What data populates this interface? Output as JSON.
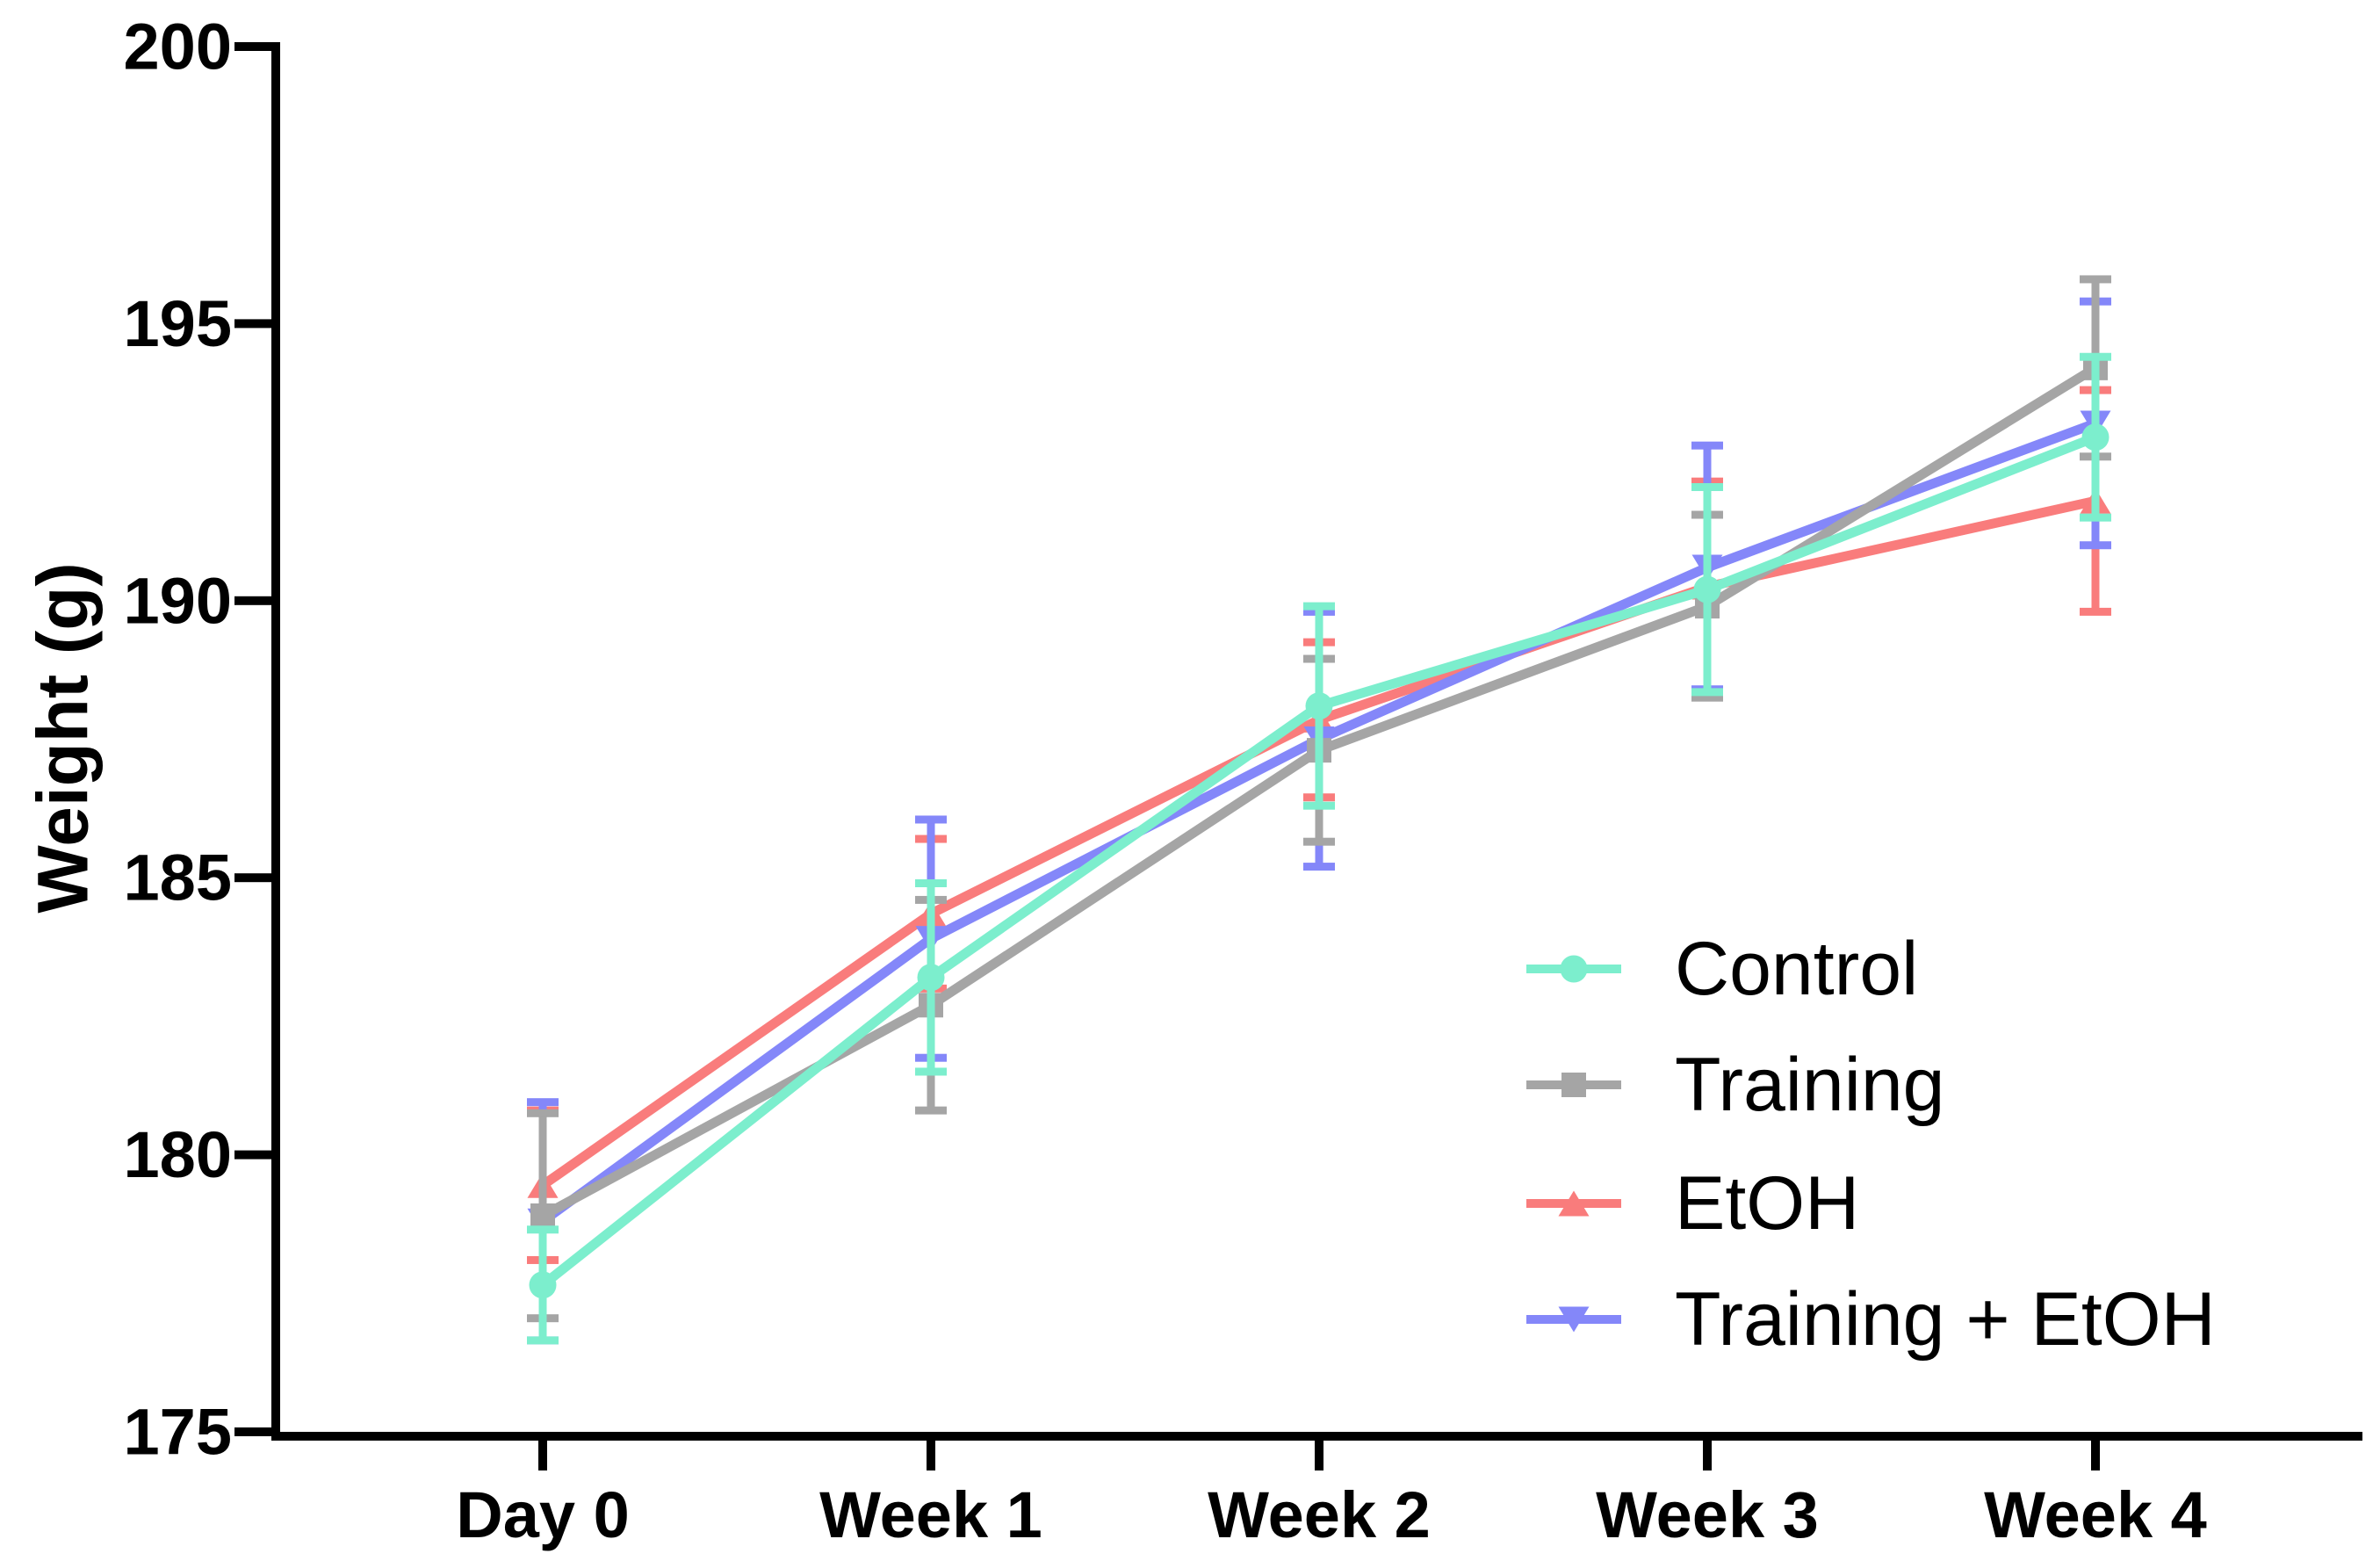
{
  "figure": {
    "background_color": "#FFFFFF",
    "text_color": "#000000",
    "axis_color": "#000000"
  },
  "chart_data": {
    "type": "line",
    "title": "",
    "xlabel": "",
    "ylabel": "Weight (g)",
    "ylim": [
      175,
      200
    ],
    "yticks": [
      175,
      180,
      185,
      190,
      195,
      200
    ],
    "grid": false,
    "legend_position": "inside-right",
    "categories": [
      "Day 0",
      "Week 1",
      "Week 2",
      "Week 3",
      "Week 4"
    ],
    "series": [
      {
        "name": "Control",
        "marker": "circle",
        "color": "#7CEECD",
        "values": [
          177.65,
          183.2,
          188.1,
          190.2,
          192.95
        ],
        "errors": [
          1.0,
          1.7,
          1.8,
          1.85,
          1.45
        ]
      },
      {
        "name": "Training",
        "marker": "square",
        "color": "#A5A5A5",
        "values": [
          178.9,
          182.7,
          187.3,
          189.9,
          194.2
        ],
        "errors": [
          1.85,
          1.9,
          1.65,
          1.65,
          1.6
        ]
      },
      {
        "name": "EtOH",
        "marker": "triangle-up",
        "color": "#F97C7C",
        "values": [
          179.45,
          184.35,
          187.85,
          190.25,
          191.8
        ],
        "errors": [
          1.35,
          1.35,
          1.4,
          1.9,
          2.0
        ]
      },
      {
        "name": "Training + EtOH",
        "marker": "triangle-down",
        "color": "#8487F9",
        "values": [
          178.8,
          183.9,
          187.5,
          190.6,
          193.2
        ],
        "errors": [
          2.15,
          2.15,
          2.3,
          2.2,
          2.2
        ]
      }
    ]
  }
}
